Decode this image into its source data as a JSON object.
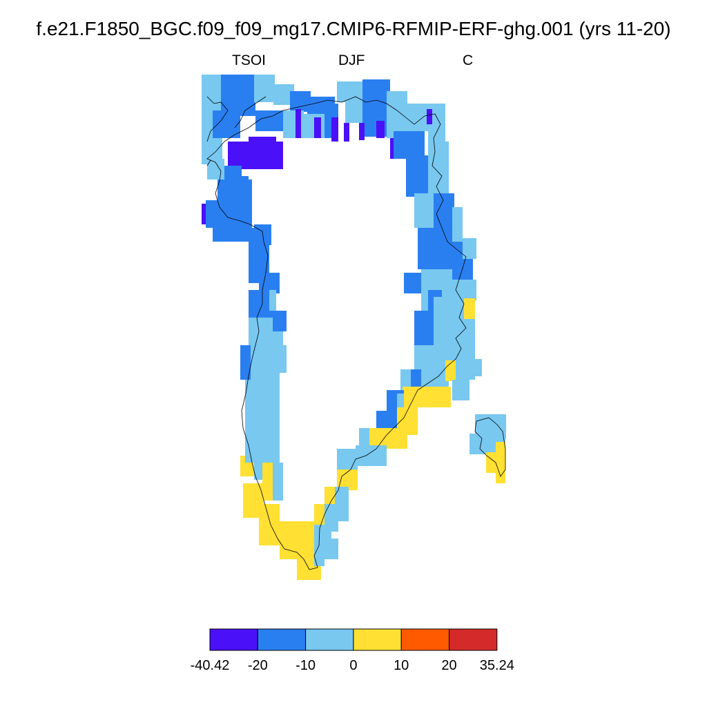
{
  "title": "f.e21.F1850_BGC.f09_f09_mg17.CMIP6-RFMIP-ERF-ghg.001 (yrs 11-20)",
  "left_label": "TSOI",
  "center_label": "DJF",
  "right_label": "C",
  "colorbar": {
    "colors": [
      "#4a10f8",
      "#2a7ff0",
      "#78c8f0",
      "#ffe033",
      "#ff5a00",
      "#d42a2a"
    ],
    "labels": [
      "-40.42",
      "-20",
      "-10",
      "0",
      "10",
      "20",
      "35.24"
    ],
    "bounds": [
      -40.42,
      -20,
      -10,
      0,
      10,
      20,
      35.24
    ]
  }
}
